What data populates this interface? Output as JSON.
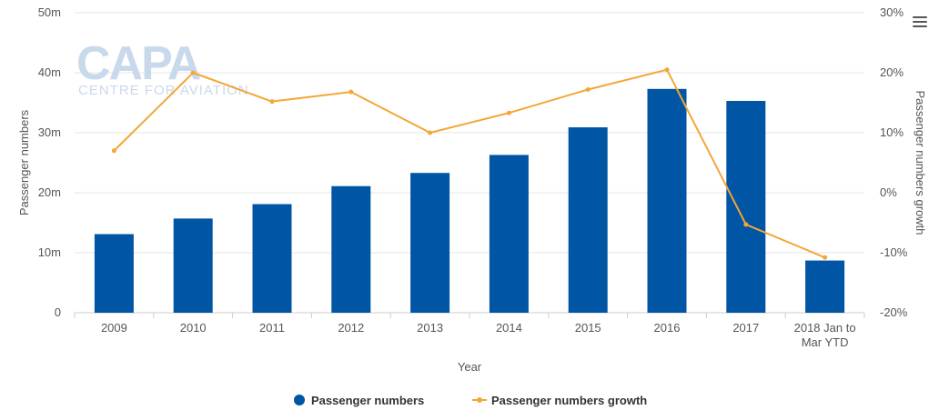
{
  "watermark": {
    "logo": "CAPA",
    "tagline": "CENTRE FOR AVIATION"
  },
  "menu_icon": "hamburger-menu-icon",
  "colors": {
    "bars": "#0055a4",
    "line": "#f4a637",
    "grid": "#e6e6e6"
  },
  "chart_data": {
    "type": "bar",
    "xlabel": "Year",
    "ylabel": "Passenger numbers",
    "y2label": "Passenger numbers growth",
    "categories": [
      "2009",
      "2010",
      "2011",
      "2012",
      "2013",
      "2014",
      "2015",
      "2016",
      "2017",
      "2018 Jan to Mar YTD"
    ],
    "category_lines": [
      [
        "2009"
      ],
      [
        "2010"
      ],
      [
        "2011"
      ],
      [
        "2012"
      ],
      [
        "2013"
      ],
      [
        "2014"
      ],
      [
        "2015"
      ],
      [
        "2016"
      ],
      [
        "2017"
      ],
      [
        "2018 Jan to",
        "Mar YTD"
      ]
    ],
    "ylim": [
      0,
      50
    ],
    "y_ticks": [
      "0",
      "10m",
      "20m",
      "30m",
      "40m",
      "50m"
    ],
    "y2lim": [
      -20,
      30
    ],
    "y2_ticks": [
      "-20%",
      "-10%",
      "0%",
      "10%",
      "20%",
      "30%"
    ],
    "series": [
      {
        "name": "Passenger numbers",
        "type": "bar",
        "axis": "left",
        "unit": "m",
        "values": [
          13.1,
          15.7,
          18.1,
          21.1,
          23.3,
          26.3,
          30.9,
          37.3,
          35.3,
          8.7
        ]
      },
      {
        "name": "Passenger numbers growth",
        "type": "line",
        "axis": "right",
        "unit": "%",
        "values": [
          7,
          20,
          15.2,
          16.8,
          10,
          13.3,
          17.2,
          20.5,
          -5.3,
          -10.8
        ]
      }
    ],
    "legend_position": "bottom-center",
    "grid": true
  }
}
